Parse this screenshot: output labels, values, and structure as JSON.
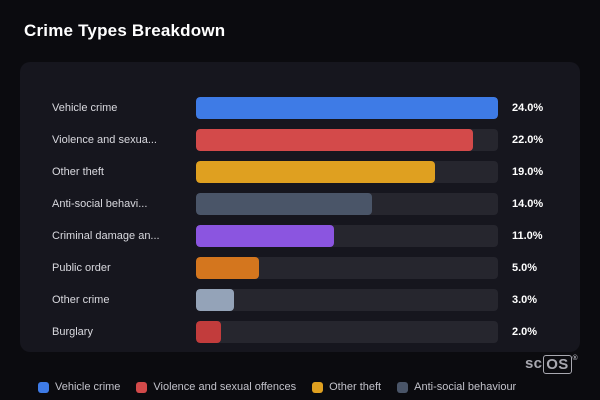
{
  "header": {
    "title": "Crime Types Breakdown"
  },
  "chart_data": {
    "type": "bar",
    "orientation": "horizontal",
    "title": "Crime Types Breakdown",
    "xlim": [
      0,
      24
    ],
    "grid": false,
    "legend_position": "bottom",
    "categories": [
      "Vehicle crime",
      "Violence and sexua...",
      "Other theft",
      "Anti-social behavi...",
      "Criminal damage an...",
      "Public order",
      "Other crime",
      "Burglary"
    ],
    "values": [
      24.0,
      22.0,
      19.0,
      14.0,
      11.0,
      5.0,
      3.0,
      2.0
    ],
    "value_labels": [
      "24.0%",
      "22.0%",
      "19.0%",
      "14.0%",
      "11.0%",
      "5.0%",
      "3.0%",
      "2.0%"
    ],
    "bar_colors": [
      "#3e7be6",
      "#d34a4a",
      "#dfa020",
      "#4a5568",
      "#8b55e0",
      "#d4761e",
      "#94a3b8",
      "#c23c3c"
    ],
    "track_color": "#26262e",
    "legend": [
      {
        "label": "Vehicle crime",
        "color": "#3e7be6"
      },
      {
        "label": "Violence and sexual offences",
        "color": "#d34a4a"
      },
      {
        "label": "Other theft",
        "color": "#dfa020"
      },
      {
        "label": "Anti-social behaviour",
        "color": "#4a5568"
      }
    ]
  },
  "watermark": {
    "prefix": "sc",
    "boxed": "OS",
    "reg": "®"
  }
}
